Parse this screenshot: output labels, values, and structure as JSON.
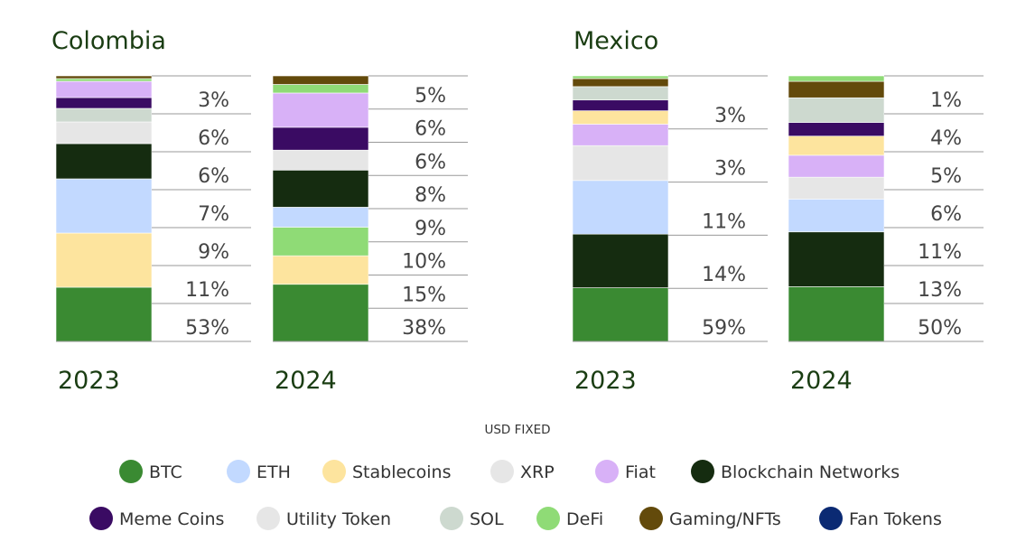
{
  "chart_data": [
    {
      "type": "bar",
      "stacked": true,
      "title": "Colombia",
      "categories": [
        "2023",
        "2024"
      ],
      "series": [
        {
          "name": "BTC",
          "values": [
            20,
            20
          ]
        },
        {
          "name": "Stablecoins",
          "values": [
            20,
            10
          ]
        },
        {
          "name": "DeFi",
          "values": [
            0,
            10
          ]
        },
        {
          "name": "ETH",
          "values": [
            20,
            7
          ]
        },
        {
          "name": "Blockchain Networks",
          "values": [
            13,
            13
          ]
        },
        {
          "name": "Utility Token",
          "values": [
            0,
            7
          ]
        },
        {
          "name": "XRP",
          "values": [
            8,
            0
          ]
        },
        {
          "name": "SOL",
          "values": [
            5,
            0
          ]
        },
        {
          "name": "Meme Coins",
          "values": [
            4,
            8
          ]
        },
        {
          "name": "Fiat",
          "values": [
            6,
            12
          ]
        },
        {
          "name": "DeFi",
          "values": [
            1,
            3
          ]
        },
        {
          "name": "Gaming/NFTs",
          "values": [
            1,
            3
          ]
        },
        {
          "name": "Fan Tokens",
          "values": [
            0,
            0
          ]
        }
      ],
      "bar_labels": [
        [
          "53%",
          "11%",
          "9%",
          "7%",
          "6%",
          "6%",
          "3%"
        ],
        [
          "38%",
          "15%",
          "10%",
          "9%",
          "8%",
          "6%",
          "6%",
          "5%"
        ]
      ]
    },
    {
      "type": "bar",
      "stacked": true,
      "title": "Mexico",
      "categories": [
        "2023",
        "2024"
      ],
      "series": [
        {
          "name": "BTC",
          "values": [
            20,
            20
          ]
        },
        {
          "name": "Blockchain Networks",
          "values": [
            20,
            20
          ]
        },
        {
          "name": "ETH",
          "values": [
            20,
            12
          ]
        },
        {
          "name": "Utility Token",
          "values": [
            13,
            8
          ]
        },
        {
          "name": "Fiat",
          "values": [
            8,
            8
          ]
        },
        {
          "name": "Stablecoins",
          "values": [
            5,
            7
          ]
        },
        {
          "name": "Meme Coins",
          "values": [
            4,
            5
          ]
        },
        {
          "name": "SOL",
          "values": [
            5,
            9
          ]
        },
        {
          "name": "Gaming/NFTs",
          "values": [
            3,
            6
          ]
        },
        {
          "name": "DeFi",
          "values": [
            1,
            2
          ]
        }
      ],
      "bar_labels": [
        [
          "59%",
          "14%",
          "11%",
          "3%",
          "3%"
        ],
        [
          "50%",
          "13%",
          "11%",
          "6%",
          "5%",
          "4%",
          "1%"
        ]
      ]
    }
  ],
  "note": "USD FIXED",
  "legend": [
    {
      "name": "BTC",
      "color": "#3a8a32"
    },
    {
      "name": "ETH",
      "color": "#c2d9ff"
    },
    {
      "name": "Stablecoins",
      "color": "#fde49e"
    },
    {
      "name": "XRP",
      "color": "#e6e6e6"
    },
    {
      "name": "Fiat",
      "color": "#d8b1f7"
    },
    {
      "name": "Blockchain Networks",
      "color": "#152c10"
    },
    {
      "name": "Meme Coins",
      "color": "#3a0b63"
    },
    {
      "name": "Utility Token",
      "color": "#e6e6e6"
    },
    {
      "name": "SOL",
      "color": "#cdd9cf"
    },
    {
      "name": "DeFi",
      "color": "#8fdb76"
    },
    {
      "name": "Gaming/NFTs",
      "color": "#634a0b"
    },
    {
      "name": "Fan Tokens",
      "color": "#0b2a73"
    }
  ],
  "colors": {
    "title": "#1a3d12",
    "divider": "#9a9a9a",
    "bar_edge": "#666666"
  }
}
